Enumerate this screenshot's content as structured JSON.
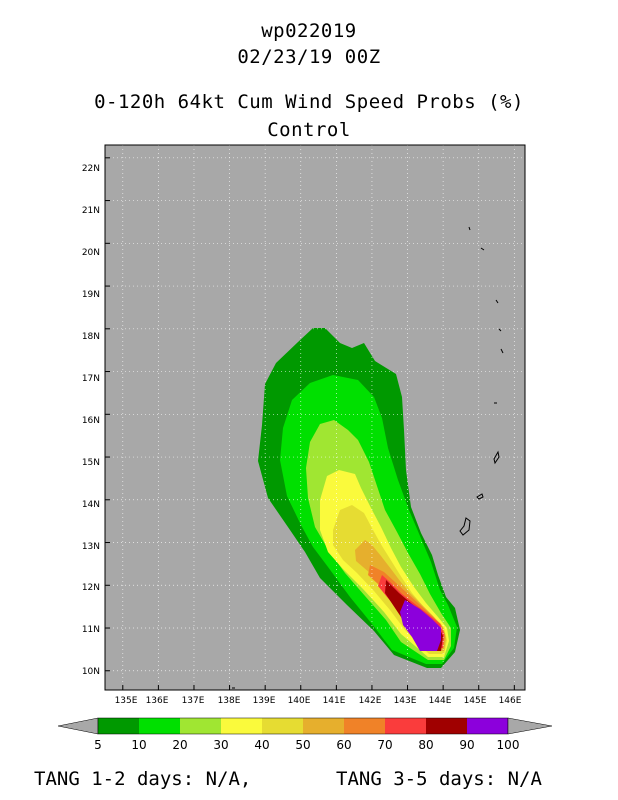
{
  "header": {
    "storm_id": "wp022019",
    "datetime": "02/23/19 00Z",
    "product": "0-120h 64kt Cum Wind Speed Probs (%)",
    "run": "Control"
  },
  "map": {
    "background_color": "#a8a8a8",
    "lon_labels": [
      "135E",
      "136E",
      "137E",
      "138E",
      "139E",
      "140E",
      "141E",
      "142E",
      "143E",
      "144E",
      "145E",
      "146E"
    ],
    "lat_labels": [
      "10N",
      "11N",
      "12N",
      "13N",
      "14N",
      "15N",
      "16N",
      "17N",
      "18N",
      "19N",
      "20N",
      "21N",
      "22N"
    ],
    "lon_range": [
      134.5,
      146.3
    ],
    "lat_range": [
      9.55,
      22.3
    ]
  },
  "colorbar": {
    "ticks": [
      "5",
      "10",
      "20",
      "30",
      "40",
      "50",
      "60",
      "70",
      "80",
      "90",
      "100"
    ],
    "colors": [
      "#009900",
      "#00e000",
      "#a0e632",
      "#fafa3c",
      "#e6dc32",
      "#e6af2d",
      "#f08228",
      "#fa3c3c",
      "#a00000",
      "#8c00dc"
    ],
    "end_color": "#a8a8a8"
  },
  "footer": {
    "tang_12_label": "TANG 1-2 days:",
    "tang_12_value": "N/A,",
    "tang_35_label": "TANG 3-5 days:",
    "tang_35_value": "N/A"
  }
}
